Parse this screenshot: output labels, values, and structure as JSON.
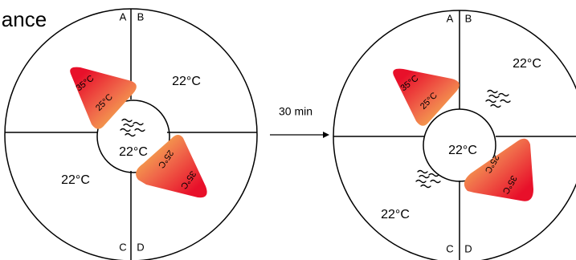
{
  "header": {
    "title": "ance"
  },
  "left_panel": {
    "quadrant_labels": [
      "A",
      "B",
      "C",
      "D"
    ],
    "temperatures": {
      "top_right": "22°C",
      "center": "22°C",
      "bottom_left": "22°C"
    },
    "gradient_upper": {
      "hot": "35°C",
      "warm": "25°C"
    },
    "gradient_lower": {
      "warm": "25°C",
      "hot": "35°C"
    }
  },
  "arrow": {
    "label": "30 min"
  },
  "right_panel": {
    "quadrant_labels": [
      "A",
      "B",
      "C",
      "D"
    ],
    "temperatures": {
      "top_right": "22°C",
      "center": "22°C",
      "bottom_left": "22°C"
    },
    "gradient_upper": {
      "hot": "35°C",
      "warm": "25°C"
    },
    "gradient_lower": {
      "warm": "25°C",
      "hot": "35°C"
    }
  }
}
